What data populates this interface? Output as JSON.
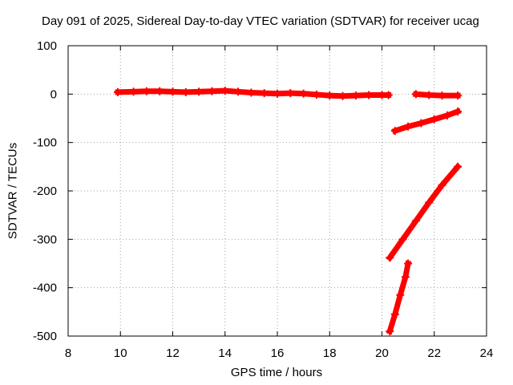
{
  "chart_data": {
    "type": "line",
    "title": "Day 091 of 2025, Sidereal Day-to-day VTEC variation (SDTVAR) for receiver ucag",
    "xlabel": "GPS time / hours",
    "ylabel": "SDTVAR / TECUs",
    "xlim": [
      8,
      24
    ],
    "ylim": [
      -500,
      100
    ],
    "xticks": [
      8,
      10,
      12,
      14,
      16,
      18,
      20,
      22,
      24
    ],
    "yticks": [
      100,
      0,
      -100,
      -200,
      -300,
      -400,
      -500
    ],
    "grid": true,
    "legend": "none",
    "series": [
      {
        "color": "#ff0000",
        "x": [
          9.9,
          10.5,
          11.0,
          11.5,
          12.0,
          12.5,
          13.0,
          13.5,
          14.0,
          14.5,
          15.0,
          15.5,
          16.0,
          16.5,
          17.0,
          17.5,
          18.0,
          18.5,
          19.0,
          19.5,
          20.0,
          20.25
        ],
        "y": [
          4,
          5,
          6,
          6,
          5,
          4,
          5,
          6,
          7,
          5,
          3,
          2,
          1,
          2,
          1,
          -1,
          -3,
          -4,
          -3,
          -2,
          -2,
          -2
        ]
      },
      {
        "color": "#ff0000",
        "x": [
          21.3,
          21.8,
          22.3,
          22.9
        ],
        "y": [
          0,
          -2,
          -3,
          -3
        ]
      },
      {
        "color": "#ff0000",
        "x": [
          20.5,
          21.0,
          21.5,
          22.0,
          22.5,
          22.9
        ],
        "y": [
          -76,
          -67,
          -60,
          -52,
          -44,
          -36
        ]
      },
      {
        "color": "#ff0000",
        "x": [
          20.3,
          20.8,
          21.3,
          21.8,
          22.3,
          22.9
        ],
        "y": [
          -338,
          -300,
          -262,
          -224,
          -188,
          -150
        ]
      },
      {
        "color": "#ff0000",
        "x": [
          20.3,
          20.5,
          20.7,
          20.9,
          21.0
        ],
        "y": [
          -490,
          -455,
          -415,
          -378,
          -350
        ]
      }
    ]
  }
}
